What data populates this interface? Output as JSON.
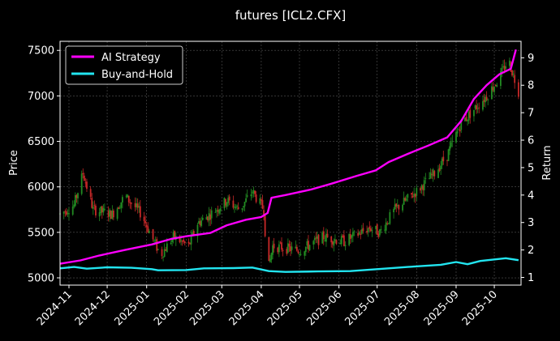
{
  "chart_data": {
    "type": "line",
    "title": "futures [ICL2.CFX]",
    "ylabel_left": "Price",
    "ylabel_right": "Return",
    "x_ticks": [
      "2024-11",
      "2024-12",
      "2025-01",
      "2025-02",
      "2025-03",
      "2025-04",
      "2025-05",
      "2025-06",
      "2025-07",
      "2025-08",
      "2025-09",
      "2025-10"
    ],
    "x_range": [
      "2024-10-25",
      "2025-10-22"
    ],
    "y_left_ticks": [
      5000,
      5500,
      6000,
      6500,
      7000,
      7500
    ],
    "y_left_range": [
      4920,
      7600
    ],
    "y_right_ticks": [
      1,
      2,
      3,
      4,
      5,
      6,
      7,
      8,
      9
    ],
    "y_right_range": [
      0.72,
      9.6
    ],
    "grid": true,
    "legend_position": "top-left",
    "colors": {
      "background": "#000000",
      "grid": "#555555",
      "up_candle": "#228b22",
      "down_candle": "#c62828",
      "ai_strategy": "#ff00ff",
      "buy_and_hold": "#22e5f0"
    },
    "series": [
      {
        "name": "AI Strategy",
        "axis": "right",
        "points": [
          [
            "2024-10-25",
            1.5
          ],
          [
            "2024-11-10",
            1.62
          ],
          [
            "2024-11-25",
            1.8
          ],
          [
            "2024-12-15",
            2.0
          ],
          [
            "2025-01-05",
            2.2
          ],
          [
            "2025-01-20",
            2.4
          ],
          [
            "2025-02-01",
            2.5
          ],
          [
            "2025-02-20",
            2.62
          ],
          [
            "2025-03-05",
            2.9
          ],
          [
            "2025-03-20",
            3.1
          ],
          [
            "2025-04-01",
            3.2
          ],
          [
            "2025-04-06",
            3.35
          ],
          [
            "2025-04-09",
            3.9
          ],
          [
            "2025-04-20",
            4.0
          ],
          [
            "2025-05-10",
            4.2
          ],
          [
            "2025-05-25",
            4.4
          ],
          [
            "2025-06-15",
            4.7
          ],
          [
            "2025-06-30",
            4.9
          ],
          [
            "2025-07-10",
            5.2
          ],
          [
            "2025-07-25",
            5.5
          ],
          [
            "2025-08-10",
            5.8
          ],
          [
            "2025-08-25",
            6.1
          ],
          [
            "2025-09-05",
            6.7
          ],
          [
            "2025-09-15",
            7.5
          ],
          [
            "2025-09-25",
            8.0
          ],
          [
            "2025-10-05",
            8.4
          ],
          [
            "2025-10-14",
            8.6
          ],
          [
            "2025-10-18",
            9.3
          ]
        ]
      },
      {
        "name": "Buy-and-Hold",
        "axis": "right",
        "points": [
          [
            "2024-10-25",
            1.33
          ],
          [
            "2024-11-05",
            1.38
          ],
          [
            "2024-11-15",
            1.32
          ],
          [
            "2024-12-01",
            1.37
          ],
          [
            "2024-12-20",
            1.35
          ],
          [
            "2025-01-05",
            1.3
          ],
          [
            "2025-01-10",
            1.26
          ],
          [
            "2025-02-01",
            1.27
          ],
          [
            "2025-02-15",
            1.33
          ],
          [
            "2025-03-10",
            1.34
          ],
          [
            "2025-03-25",
            1.36
          ],
          [
            "2025-04-07",
            1.23
          ],
          [
            "2025-04-20",
            1.2
          ],
          [
            "2025-05-15",
            1.22
          ],
          [
            "2025-06-10",
            1.23
          ],
          [
            "2025-07-01",
            1.3
          ],
          [
            "2025-07-25",
            1.38
          ],
          [
            "2025-08-20",
            1.46
          ],
          [
            "2025-09-01",
            1.56
          ],
          [
            "2025-09-10",
            1.48
          ],
          [
            "2025-09-20",
            1.6
          ],
          [
            "2025-10-10",
            1.7
          ],
          [
            "2025-10-20",
            1.63
          ]
        ]
      }
    ],
    "price_path": [
      [
        "2024-10-25",
        5700
      ],
      [
        "2024-11-05",
        5800
      ],
      [
        "2024-11-12",
        6150
      ],
      [
        "2024-11-20",
        5750
      ],
      [
        "2024-12-05",
        5700
      ],
      [
        "2024-12-15",
        5900
      ],
      [
        "2024-12-28",
        5700
      ],
      [
        "2025-01-05",
        5450
      ],
      [
        "2025-01-12",
        5250
      ],
      [
        "2025-01-22",
        5450
      ],
      [
        "2025-02-03",
        5350
      ],
      [
        "2025-02-10",
        5600
      ],
      [
        "2025-02-20",
        5700
      ],
      [
        "2025-03-05",
        5850
      ],
      [
        "2025-03-15",
        5750
      ],
      [
        "2025-03-25",
        5950
      ],
      [
        "2025-04-03",
        5750
      ],
      [
        "2025-04-06",
        5050
      ],
      [
        "2025-04-10",
        5350
      ],
      [
        "2025-05-01",
        5300
      ],
      [
        "2025-05-20",
        5450
      ],
      [
        "2025-06-05",
        5400
      ],
      [
        "2025-06-25",
        5550
      ],
      [
        "2025-07-03",
        5500
      ],
      [
        "2025-07-15",
        5750
      ],
      [
        "2025-08-01",
        5950
      ],
      [
        "2025-08-15",
        6150
      ],
      [
        "2025-08-25",
        6350
      ],
      [
        "2025-09-05",
        6700
      ],
      [
        "2025-09-15",
        6850
      ],
      [
        "2025-09-25",
        7000
      ],
      [
        "2025-10-05",
        7200
      ],
      [
        "2025-10-12",
        7400
      ],
      [
        "2025-10-20",
        7050
      ]
    ]
  }
}
